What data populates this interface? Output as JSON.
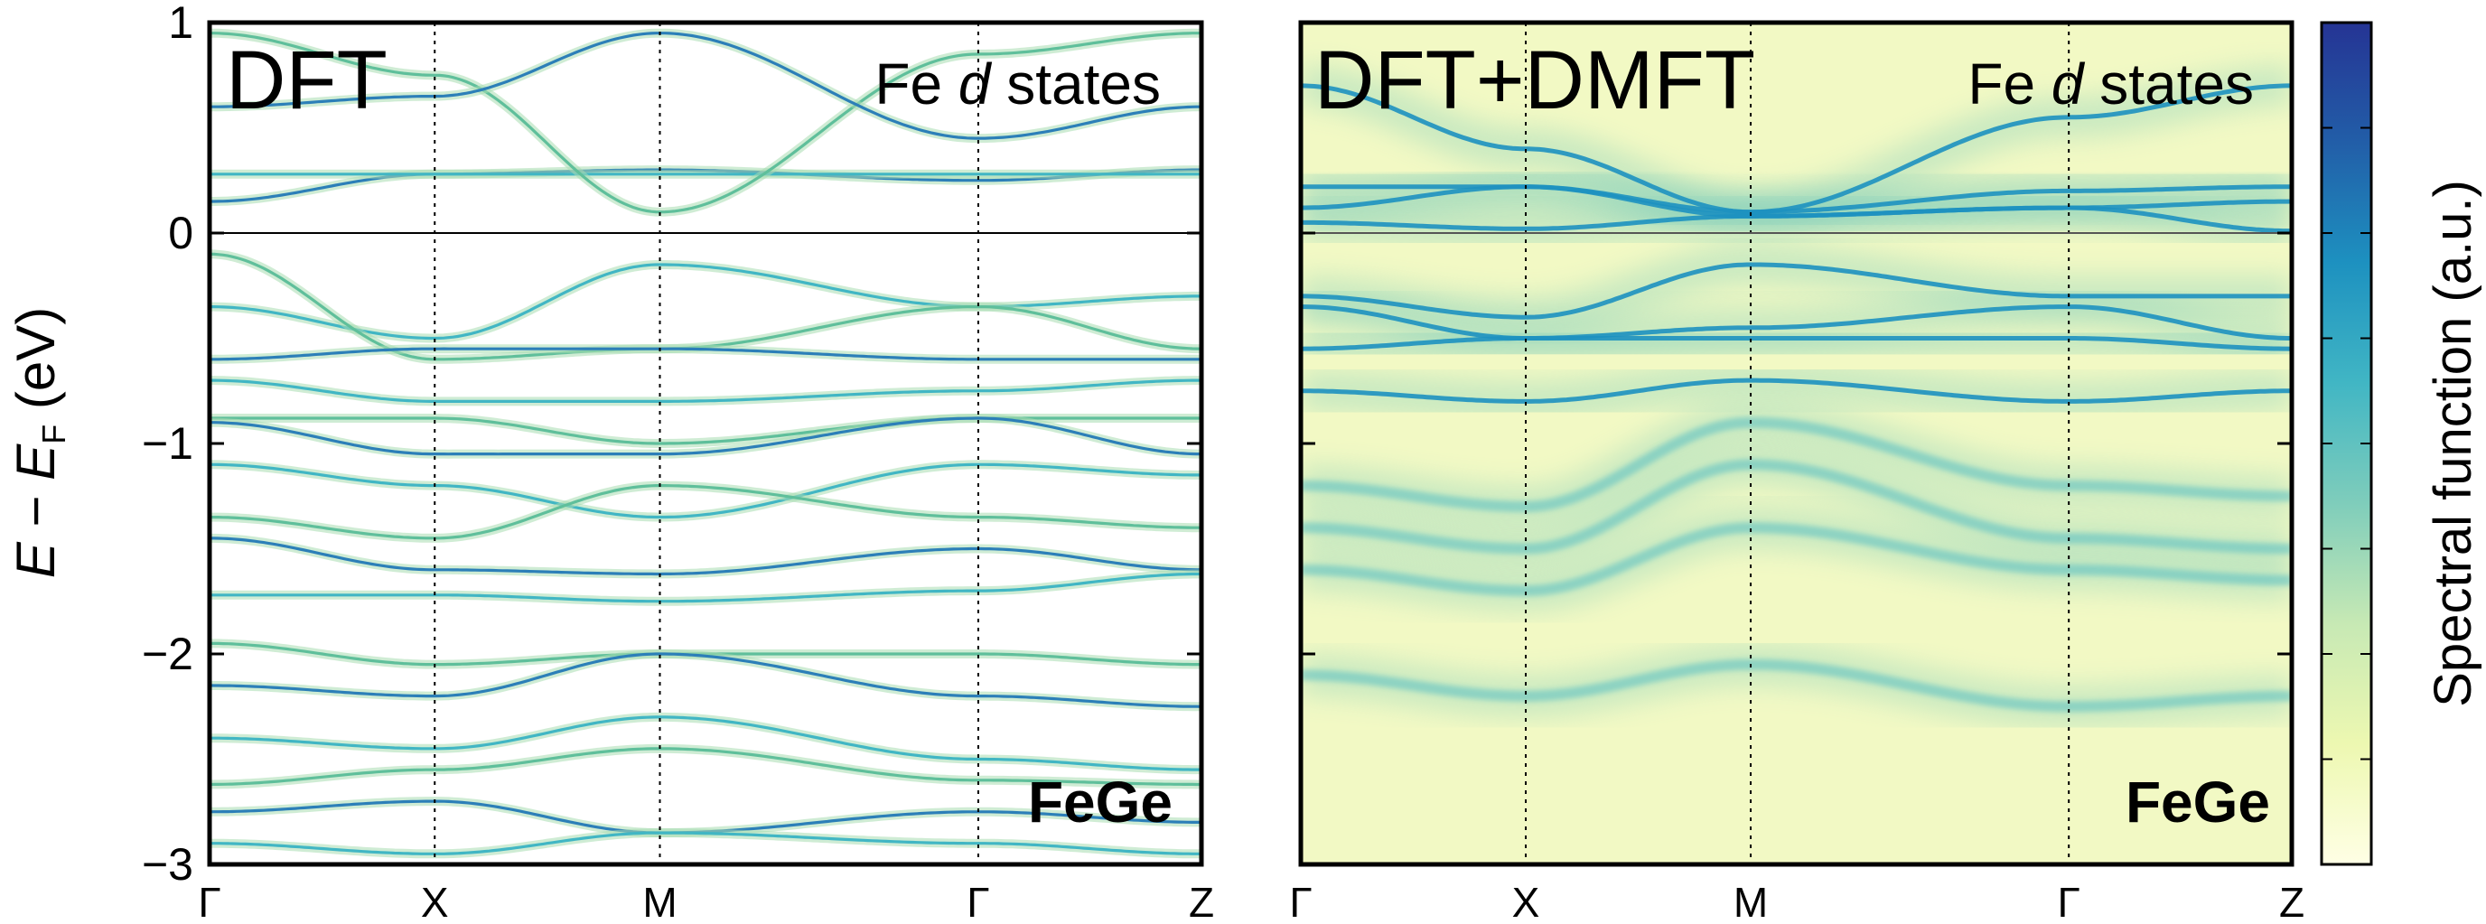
{
  "chart_data": [
    {
      "type": "heatmap",
      "title": "DFT",
      "subtitle_prefix": "Fe ",
      "subtitle_italic": "d",
      "subtitle_suffix": " states",
      "material_label": "FeGe",
      "ylabel": {
        "italic1": "E",
        "dash": " − ",
        "italic2": "E",
        "subscript": "F",
        "unit": " (eV)"
      },
      "ylim": [
        -3,
        1
      ],
      "yticks": [
        -3,
        -2,
        -1,
        0,
        1
      ],
      "ytick_labels": [
        "−3",
        "−2",
        "−1",
        "0",
        "1"
      ],
      "k_path": [
        {
          "label": "Γ",
          "pos": 0.0
        },
        {
          "label": "X",
          "pos": 0.227
        },
        {
          "label": "M",
          "pos": 0.454
        },
        {
          "label": "Γ",
          "pos": 0.775
        },
        {
          "label": "Z",
          "pos": 1.0
        }
      ],
      "fermi_level": 0,
      "bands": [
        [
          0.15,
          0.28,
          0.3,
          0.25,
          0.3
        ],
        [
          0.28,
          0.28,
          0.28,
          0.28,
          0.28
        ],
        [
          0.95,
          0.75,
          0.1,
          0.85,
          0.95
        ],
        [
          0.6,
          0.65,
          0.95,
          0.45,
          0.6
        ],
        [
          -0.35,
          -0.5,
          -0.15,
          -0.35,
          -0.3
        ],
        [
          -0.1,
          -0.6,
          -0.55,
          -0.35,
          -0.55
        ],
        [
          -0.6,
          -0.55,
          -0.55,
          -0.6,
          -0.6
        ],
        [
          -0.7,
          -0.8,
          -0.8,
          -0.75,
          -0.7
        ],
        [
          -0.88,
          -0.88,
          -1.0,
          -0.88,
          -0.88
        ],
        [
          -0.9,
          -1.05,
          -1.05,
          -0.88,
          -1.05
        ],
        [
          -1.1,
          -1.2,
          -1.35,
          -1.1,
          -1.15
        ],
        [
          -1.35,
          -1.45,
          -1.2,
          -1.35,
          -1.4
        ],
        [
          -1.45,
          -1.6,
          -1.62,
          -1.5,
          -1.6
        ],
        [
          -1.72,
          -1.72,
          -1.75,
          -1.7,
          -1.62
        ],
        [
          -1.95,
          -2.05,
          -2.0,
          -2.0,
          -2.05
        ],
        [
          -2.15,
          -2.2,
          -2.0,
          -2.2,
          -2.25
        ],
        [
          -2.4,
          -2.45,
          -2.3,
          -2.5,
          -2.55
        ],
        [
          -2.62,
          -2.55,
          -2.45,
          -2.6,
          -2.62
        ],
        [
          -2.75,
          -2.7,
          -2.85,
          -2.75,
          -2.8
        ],
        [
          -2.9,
          -2.95,
          -2.85,
          -2.9,
          -2.95
        ]
      ]
    },
    {
      "type": "heatmap",
      "title": "DFT+DMFT",
      "subtitle_prefix": "Fe ",
      "subtitle_italic": "d",
      "subtitle_suffix": " states",
      "material_label": "FeGe",
      "ylim": [
        -3,
        1
      ],
      "yticks": [
        -3,
        -2,
        -1,
        0,
        1
      ],
      "k_path": [
        {
          "label": "Γ",
          "pos": 0.0
        },
        {
          "label": "X",
          "pos": 0.227
        },
        {
          "label": "M",
          "pos": 0.454
        },
        {
          "label": "Γ",
          "pos": 0.775
        },
        {
          "label": "Z",
          "pos": 1.0
        }
      ],
      "fermi_level": 0,
      "bands": [
        [
          0.12,
          0.22,
          0.08,
          0.12,
          0.15
        ],
        [
          0.22,
          0.22,
          0.1,
          0.2,
          0.22
        ],
        [
          0.05,
          0.02,
          0.08,
          0.12,
          0.01
        ],
        [
          0.7,
          0.4,
          0.1,
          0.55,
          0.7
        ],
        [
          -0.3,
          -0.4,
          -0.15,
          -0.3,
          -0.3
        ],
        [
          -0.35,
          -0.5,
          -0.45,
          -0.35,
          -0.5
        ],
        [
          -0.55,
          -0.5,
          -0.5,
          -0.5,
          -0.55
        ],
        [
          -0.75,
          -0.8,
          -0.7,
          -0.8,
          -0.75
        ],
        [
          -1.2,
          -1.3,
          -0.9,
          -1.2,
          -1.25
        ],
        [
          -1.4,
          -1.5,
          -1.1,
          -1.45,
          -1.5
        ],
        [
          -1.6,
          -1.7,
          -1.4,
          -1.6,
          -1.65
        ],
        [
          -2.1,
          -2.2,
          -2.05,
          -2.25,
          -2.2
        ]
      ]
    },
    {
      "type": "colorbar",
      "label": "Spectral function (a.u.)",
      "colors": [
        "#ffffe5",
        "#edf8b1",
        "#c7e9b4",
        "#7fcdbb",
        "#41b6c4",
        "#1d91c0",
        "#225ea8",
        "#253494"
      ]
    }
  ]
}
